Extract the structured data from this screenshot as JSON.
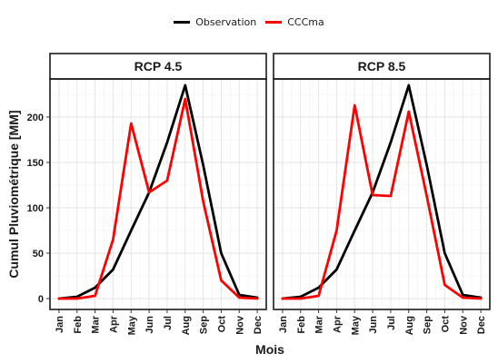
{
  "legend": {
    "observation_label": "Observation",
    "model_label": "CCCma",
    "observation_color": "#000000",
    "model_color": "#ff0000"
  },
  "chart_data": {
    "type": "line",
    "xlabel": "Mois",
    "ylabel": "Cumul Pluviométrique [MM]",
    "categories": [
      "Jan",
      "Feb",
      "Mar",
      "Apr",
      "May",
      "Jun",
      "Jul",
      "Aug",
      "Sep",
      "Oct",
      "Nov",
      "Dec"
    ],
    "ylim": [
      -12,
      242
    ],
    "yticks": [
      0,
      50,
      100,
      150,
      200
    ],
    "grid": true,
    "legend_position": "top",
    "panels": [
      {
        "title": "RCP 4.5",
        "series": [
          {
            "name": "Observation",
            "color": "#000000",
            "values": [
              0,
              2,
              12,
              32,
              75,
              117,
              172,
              235,
              147,
              50,
              4,
              1
            ]
          },
          {
            "name": "CCCma",
            "color": "#ff0000",
            "values": [
              0,
              0,
              3,
              65,
              193,
              117,
              130,
              220,
              107,
              20,
              1,
              0
            ]
          }
        ]
      },
      {
        "title": "RCP 8.5",
        "series": [
          {
            "name": "Observation",
            "color": "#000000",
            "values": [
              0,
              2,
              12,
              32,
              75,
              117,
              172,
              235,
              147,
              50,
              4,
              1
            ]
          },
          {
            "name": "CCCma",
            "color": "#ff0000",
            "values": [
              0,
              0,
              3,
              75,
              213,
              114,
              113,
              206,
              113,
              15,
              1,
              0
            ]
          }
        ]
      }
    ]
  }
}
